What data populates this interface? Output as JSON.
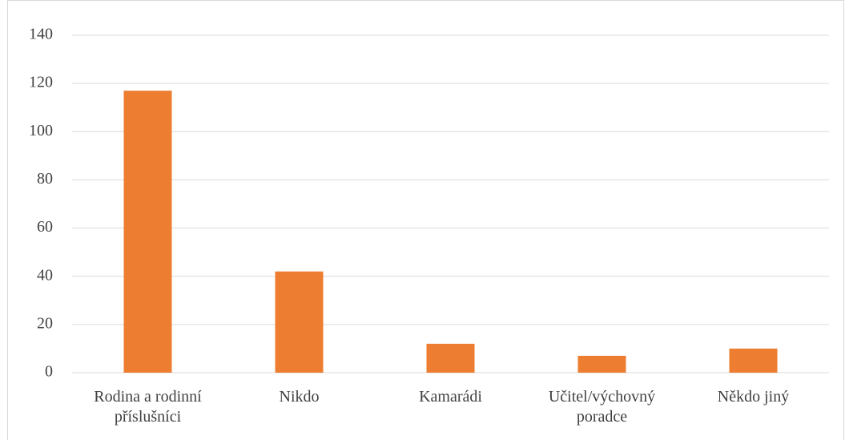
{
  "chart_data": {
    "type": "bar",
    "categories": [
      "Rodina a rodinní příslušníci",
      "Nikdo",
      "Kamarádi",
      "Učitel/výchovný poradce",
      "Někdo jiný"
    ],
    "values": [
      117,
      42,
      12,
      7,
      10
    ],
    "color": "#ed7d31",
    "ylim": [
      0,
      140
    ],
    "yticks": [
      0,
      20,
      40,
      60,
      80,
      100,
      120,
      140
    ],
    "grid": true
  }
}
